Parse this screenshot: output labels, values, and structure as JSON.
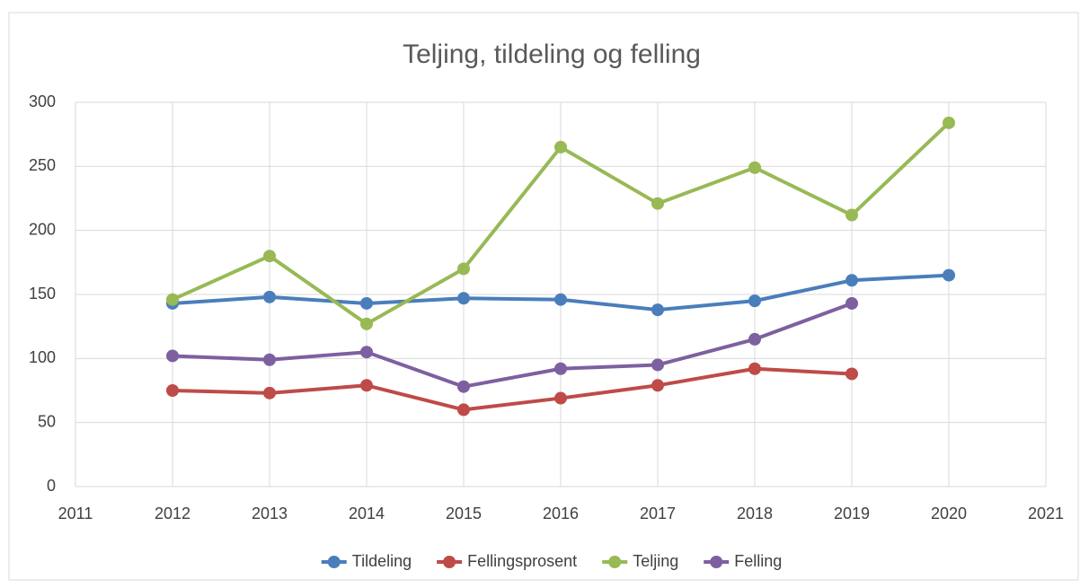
{
  "chart_data": {
    "type": "line",
    "title": "Teljing, tildeling og felling",
    "x": [
      2012,
      2013,
      2014,
      2015,
      2016,
      2017,
      2018,
      2019,
      2020
    ],
    "series": [
      {
        "name": "Tildeling",
        "color": "#4a7ebb",
        "values": [
          143,
          148,
          143,
          147,
          146,
          138,
          145,
          161,
          165
        ]
      },
      {
        "name": "Fellingsprosent",
        "color": "#be4b48",
        "values": [
          75,
          73,
          79,
          60,
          69,
          79,
          92,
          88,
          null
        ]
      },
      {
        "name": "Teljing",
        "color": "#98b954",
        "values": [
          146,
          180,
          127,
          170,
          265,
          221,
          249,
          212,
          284
        ]
      },
      {
        "name": "Felling",
        "color": "#7d60a0",
        "values": [
          102,
          99,
          105,
          78,
          92,
          95,
          115,
          143,
          null
        ]
      }
    ],
    "xlim": [
      2011,
      2021
    ],
    "xticks": [
      2011,
      2012,
      2013,
      2014,
      2015,
      2016,
      2017,
      2018,
      2019,
      2020,
      2021
    ],
    "ylim": [
      0,
      300
    ],
    "yticks": [
      0,
      50,
      100,
      150,
      200,
      250,
      300
    ],
    "grid": true,
    "legend": "bottom"
  }
}
